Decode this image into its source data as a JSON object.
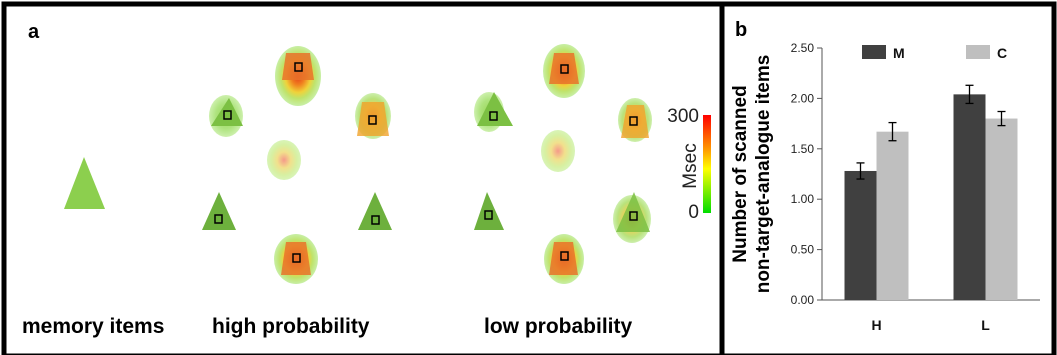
{
  "panel_a": {
    "label": "a",
    "groups": {
      "memory": "memory items",
      "high": "high probability",
      "low": "low probability"
    },
    "colorbar": {
      "max_label": "300",
      "min_label": "0",
      "unit_label": "Msec",
      "colors": [
        "#ff0000",
        "#ff9900",
        "#ffff00",
        "#00dd00"
      ]
    }
  },
  "panel_b": {
    "label": "b"
  },
  "chart_data": {
    "type": "bar",
    "categories": [
      "H",
      "L"
    ],
    "series": [
      {
        "name": "M",
        "values": [
          1.28,
          2.04
        ],
        "errors": [
          0.08,
          0.09
        ],
        "color": "#404040"
      },
      {
        "name": "C",
        "values": [
          1.67,
          1.8
        ],
        "errors": [
          0.09,
          0.07
        ],
        "color": "#bfbfbf"
      }
    ],
    "ylabel_line1": "Number of scanned",
    "ylabel_line2": "non-target-analogue items",
    "xlabel": "",
    "ylim": [
      0,
      2.5
    ],
    "yticks": [
      "0.00",
      "0.50",
      "1.00",
      "1.50",
      "2.00",
      "2.50"
    ],
    "legend_position": "top",
    "grid": false
  }
}
